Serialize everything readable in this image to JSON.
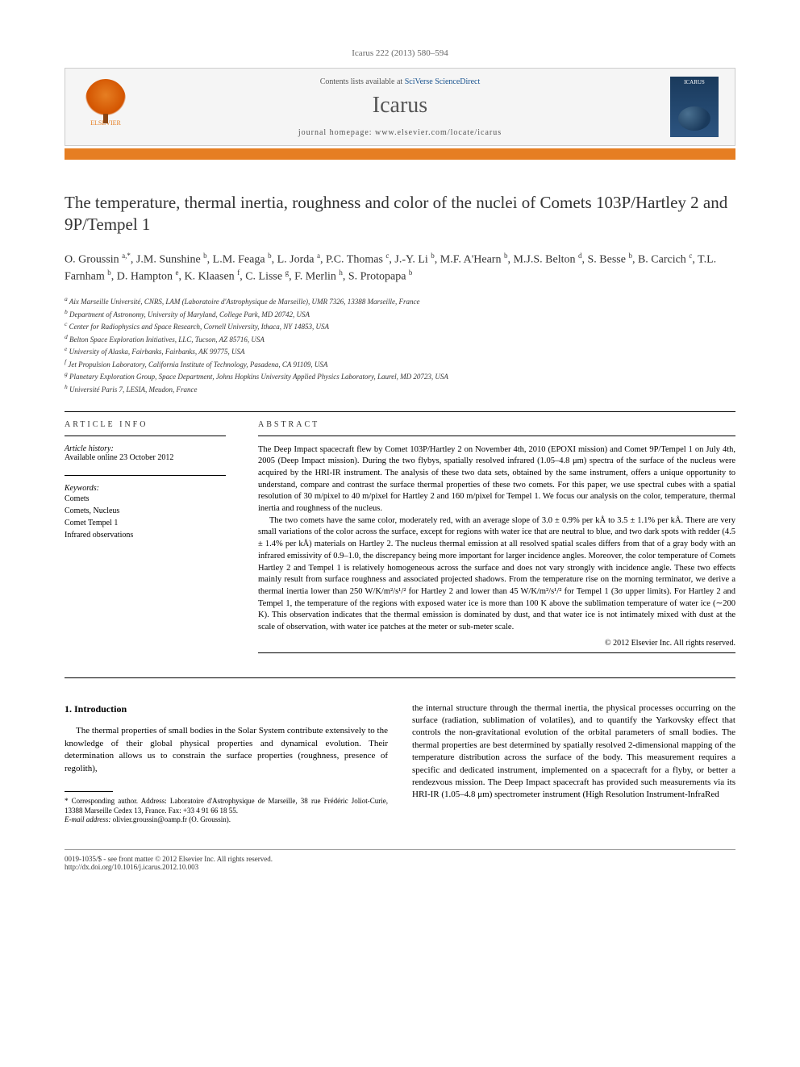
{
  "header": {
    "citation": "Icarus 222 (2013) 580–594",
    "contents_prefix": "Contents lists available at ",
    "contents_link": "SciVerse ScienceDirect",
    "journal_name": "Icarus",
    "homepage_label": "journal homepage: ",
    "homepage_url": "www.elsevier.com/locate/icarus",
    "publisher": "ELSEVIER",
    "cover_label": "ICARUS"
  },
  "title": "The temperature, thermal inertia, roughness and color of the nuclei of Comets 103P/Hartley 2 and 9P/Tempel 1",
  "authors_html": "O. Groussin <sup>a,*</sup>, J.M. Sunshine <sup>b</sup>, L.M. Feaga <sup>b</sup>, L. Jorda <sup>a</sup>, P.C. Thomas <sup>c</sup>, J.-Y. Li <sup>b</sup>, M.F. A'Hearn <sup>b</sup>, M.J.S. Belton <sup>d</sup>, S. Besse <sup>b</sup>, B. Carcich <sup>c</sup>, T.L. Farnham <sup>b</sup>, D. Hampton <sup>e</sup>, K. Klaasen <sup>f</sup>, C. Lisse <sup>g</sup>, F. Merlin <sup>h</sup>, S. Protopapa <sup>b</sup>",
  "affiliations": [
    "a Aix Marseille Université, CNRS, LAM (Laboratoire d'Astrophysique de Marseille), UMR 7326, 13388 Marseille, France",
    "b Department of Astronomy, University of Maryland, College Park, MD 20742, USA",
    "c Center for Radiophysics and Space Research, Cornell University, Ithaca, NY 14853, USA",
    "d Belton Space Exploration Initiatives, LLC, Tucson, AZ 85716, USA",
    "e University of Alaska, Fairbanks, Fairbanks, AK 99775, USA",
    "f Jet Propulsion Laboratory, California Institute of Technology, Pasadena, CA 91109, USA",
    "g Planetary Exploration Group, Space Department, Johns Hopkins University Applied Physics Laboratory, Laurel, MD 20723, USA",
    "h Université Paris 7, LESIA, Meudon, France"
  ],
  "article_info": {
    "heading": "ARTICLE INFO",
    "history_label": "Article history:",
    "history_value": "Available online 23 October 2012",
    "keywords_label": "Keywords:",
    "keywords": [
      "Comets",
      "Comets, Nucleus",
      "Comet Tempel 1",
      "Infrared observations"
    ]
  },
  "abstract": {
    "heading": "ABSTRACT",
    "p1": "The Deep Impact spacecraft flew by Comet 103P/Hartley 2 on November 4th, 2010 (EPOXI mission) and Comet 9P/Tempel 1 on July 4th, 2005 (Deep Impact mission). During the two flybys, spatially resolved infrared (1.05–4.8 μm) spectra of the surface of the nucleus were acquired by the HRI-IR instrument. The analysis of these two data sets, obtained by the same instrument, offers a unique opportunity to understand, compare and contrast the surface thermal properties of these two comets. For this paper, we use spectral cubes with a spatial resolution of 30 m/pixel to 40 m/pixel for Hartley 2 and 160 m/pixel for Tempel 1. We focus our analysis on the color, temperature, thermal inertia and roughness of the nucleus.",
    "p2": "The two comets have the same color, moderately red, with an average slope of 3.0 ± 0.9% per kÅ to 3.5 ± 1.1% per kÅ. There are very small variations of the color across the surface, except for regions with water ice that are neutral to blue, and two dark spots with redder (4.5 ± 1.4% per kÅ) materials on Hartley 2. The nucleus thermal emission at all resolved spatial scales differs from that of a gray body with an infrared emissivity of 0.9–1.0, the discrepancy being more important for larger incidence angles. Moreover, the color temperature of Comets Hartley 2 and Tempel 1 is relatively homogeneous across the surface and does not vary strongly with incidence angle. These two effects mainly result from surface roughness and associated projected shadows. From the temperature rise on the morning terminator, we derive a thermal inertia lower than 250 W/K/m²/s¹/² for Hartley 2 and lower than 45 W/K/m²/s¹/² for Tempel 1 (3σ upper limits). For Hartley 2 and Tempel 1, the temperature of the regions with exposed water ice is more than 100 K above the sublimation temperature of water ice (∼200 K). This observation indicates that the thermal emission is dominated by dust, and that water ice is not intimately mixed with dust at the scale of observation, with water ice patches at the meter or sub-meter scale.",
    "copyright": "© 2012 Elsevier Inc. All rights reserved."
  },
  "body": {
    "section_heading": "1. Introduction",
    "col1_p1": "The thermal properties of small bodies in the Solar System contribute extensively to the knowledge of their global physical properties and dynamical evolution. Their determination allows us to constrain the surface properties (roughness, presence of regolith),",
    "col2_p1": "the internal structure through the thermal inertia, the physical processes occurring on the surface (radiation, sublimation of volatiles), and to quantify the Yarkovsky effect that controls the non-gravitational evolution of the orbital parameters of small bodies. The thermal properties are best determined by spatially resolved 2-dimensional mapping of the temperature distribution across the surface of the body. This measurement requires a specific and dedicated instrument, implemented on a spacecraft for a flyby, or better a rendezvous mission. The Deep Impact spacecraft has provided such measurements via its HRI-IR (1.05–4.8 μm) spectrometer instrument (High Resolution Instrument-InfraRed"
  },
  "footnote": {
    "corresponding": "* Corresponding author. Address: Laboratoire d'Astrophysique de Marseille, 38 rue Frédéric Joliot-Curie, 13388 Marseille Cedex 13, France. Fax: +33 4 91 66 18 55.",
    "email_label": "E-mail address:",
    "email": "olivier.groussin@oamp.fr",
    "email_attrib": "(O. Groussin)."
  },
  "footer": {
    "issn": "0019-1035/$ - see front matter © 2012 Elsevier Inc. All rights reserved.",
    "doi": "http://dx.doi.org/10.1016/j.icarus.2012.10.003"
  },
  "colors": {
    "accent": "#e67e22",
    "link": "#1a5490",
    "text": "#333333",
    "rule": "#000000"
  }
}
